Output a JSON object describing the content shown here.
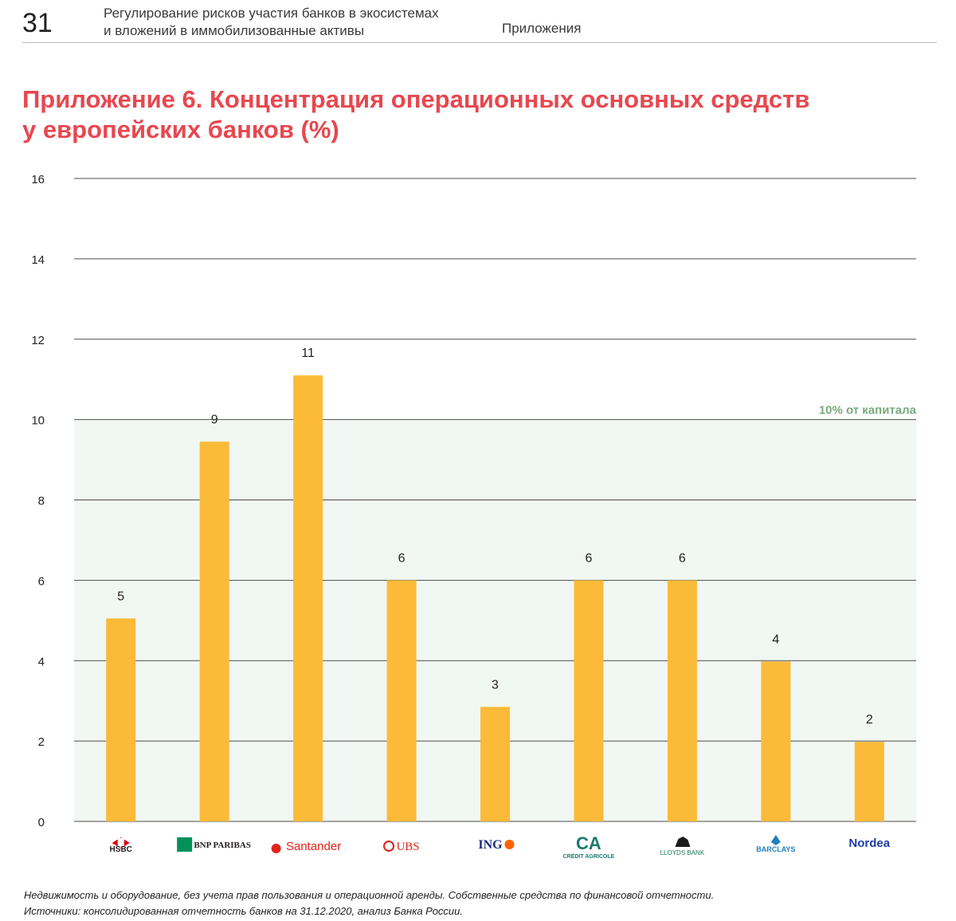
{
  "header": {
    "page_number": "31",
    "title_line1": "Регулирование рисков участия банков в экосистемах",
    "title_line2": "и вложений в иммобилизованные активы",
    "section": "Приложения"
  },
  "title_line1": "Приложение 6. Концентрация операционных основных средств",
  "title_line2": "у европейских банков (%)",
  "footnotes": {
    "note1": "Недвижимость и оборудование, без учета прав пользования и операционной аренды. Собственные средства по финансовой отчетности.",
    "note2": "Источники: консолидированная отчетность банков на 31.12.2020, анализ Банка России."
  },
  "colors": {
    "bar": "#fbbb39",
    "band": "#f1f7f2",
    "band_label": "#7aaa7d",
    "title": "#e8474f"
  },
  "chart_data": {
    "type": "bar",
    "categories": [
      "HSBC",
      "BNP PARIBAS",
      "Santander",
      "UBS",
      "ING",
      "CRÉDIT AGRICOLE",
      "LLOYDS BANK",
      "BARCLAYS",
      "Nordea"
    ],
    "values": [
      5.05,
      9.45,
      11.1,
      6.0,
      2.85,
      6.0,
      6.0,
      3.98,
      1.98
    ],
    "data_labels": [
      "5",
      "9",
      "11",
      "6",
      "3",
      "6",
      "6",
      "4",
      "2"
    ],
    "ylim": [
      0,
      16
    ],
    "yticks": [
      0,
      2,
      4,
      6,
      8,
      10,
      12,
      14,
      16
    ],
    "grid": true,
    "threshold": {
      "value": 10,
      "label": "10% от капитала"
    }
  }
}
